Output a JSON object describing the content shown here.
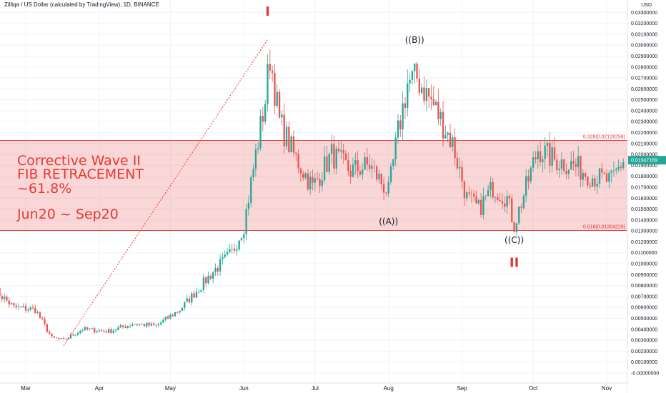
{
  "header": {
    "title": "Zilliqa / US Dollar (calculated by TradingView), 1D, BINANCE"
  },
  "chart_data": {
    "type": "candlestick",
    "title": "Zilliqa / US Dollar (calculated by TradingView), 1D, BINANCE",
    "currency": "USD",
    "ylim": [
      -0.001,
      0.0345
    ],
    "y_ticks": [
      "0.03300000",
      "0.03200000",
      "0.03100000",
      "0.03000000",
      "0.02900000",
      "0.02800000",
      "0.02700000",
      "0.02600000",
      "0.02500000",
      "0.02400000",
      "0.02300000",
      "0.02200000",
      "0.02100000",
      "0.02000000",
      "0.01900000",
      "0.01800000",
      "0.01700000",
      "0.01600000",
      "0.01500000",
      "0.01400000",
      "0.01300000",
      "0.01200000",
      "0.01100000",
      "0.01000000",
      "0.00900000",
      "0.00800000",
      "0.00700000",
      "0.00600000",
      "0.00500000",
      "0.00400000",
      "0.00300000",
      "0.00200000",
      "0.00100000",
      "-0.00000000"
    ],
    "x_ticks": [
      "Mar",
      "Apr",
      "May",
      "Jun",
      "Jul",
      "Aug",
      "Sep",
      "Oct",
      "Nov"
    ],
    "current_price": "0.01947169",
    "colors": {
      "up": "#26a69a",
      "down": "#ef5350",
      "zone": "#e53935"
    },
    "fib_zone": {
      "upper": {
        "value": 0.02128258,
        "label": "0.328(0.02128258)"
      },
      "lower": {
        "value": 0.01304228,
        "label": "0.618(0.01304228)"
      }
    },
    "trend_line": {
      "from": {
        "date": "2020-03-17",
        "value": 0.0025
      },
      "to": {
        "date": "2020-06-11",
        "value": 0.0305
      }
    },
    "waves": [
      {
        "label": "I",
        "date": "2020-06-11",
        "value": 0.0327,
        "style": "red"
      },
      {
        "label": "((B))",
        "date": "2020-08-12",
        "value": 0.0302,
        "style": "black"
      },
      {
        "label": "((A))",
        "date": "2020-08-01",
        "value": 0.0136,
        "style": "black"
      },
      {
        "label": "((C))",
        "date": "2020-09-23",
        "value": 0.0119,
        "style": "black"
      },
      {
        "label": "II",
        "date": "2020-09-23",
        "value": 0.0097,
        "style": "red"
      }
    ],
    "annotation_lines": [
      "Corrective Wave II",
      "FIB RETRACEMENT",
      "~61.8%",
      "",
      "Jun20 ~ Sep20"
    ],
    "candles_close_anchors": [
      [
        "2020-02-17",
        0.0076
      ],
      [
        "2020-02-25",
        0.006
      ],
      [
        "2020-03-05",
        0.0058
      ],
      [
        "2020-03-12",
        0.0032
      ],
      [
        "2020-03-17",
        0.003
      ],
      [
        "2020-03-25",
        0.004
      ],
      [
        "2020-04-05",
        0.0038
      ],
      [
        "2020-04-15",
        0.0045
      ],
      [
        "2020-04-25",
        0.0043
      ],
      [
        "2020-05-05",
        0.0058
      ],
      [
        "2020-05-12",
        0.0075
      ],
      [
        "2020-05-20",
        0.0095
      ],
      [
        "2020-05-27",
        0.011
      ],
      [
        "2020-06-01",
        0.0135
      ],
      [
        "2020-06-06",
        0.02
      ],
      [
        "2020-06-10",
        0.025
      ],
      [
        "2020-06-12",
        0.029
      ],
      [
        "2020-06-16",
        0.023
      ],
      [
        "2020-06-22",
        0.02
      ],
      [
        "2020-06-30",
        0.017
      ],
      [
        "2020-07-08",
        0.02
      ],
      [
        "2020-07-16",
        0.0185
      ],
      [
        "2020-07-24",
        0.019
      ],
      [
        "2020-08-01",
        0.0165
      ],
      [
        "2020-08-05",
        0.022
      ],
      [
        "2020-08-09",
        0.0265
      ],
      [
        "2020-08-13",
        0.027
      ],
      [
        "2020-08-20",
        0.0245
      ],
      [
        "2020-08-28",
        0.021
      ],
      [
        "2020-09-03",
        0.016
      ],
      [
        "2020-09-08",
        0.015
      ],
      [
        "2020-09-14",
        0.017
      ],
      [
        "2020-09-20",
        0.016
      ],
      [
        "2020-09-23",
        0.0135
      ],
      [
        "2020-09-28",
        0.017
      ],
      [
        "2020-10-03",
        0.0205
      ],
      [
        "2020-10-10",
        0.0195
      ],
      [
        "2020-10-18",
        0.019
      ],
      [
        "2020-10-26",
        0.018
      ],
      [
        "2020-11-03",
        0.0175
      ],
      [
        "2020-11-08",
        0.0195
      ]
    ]
  }
}
